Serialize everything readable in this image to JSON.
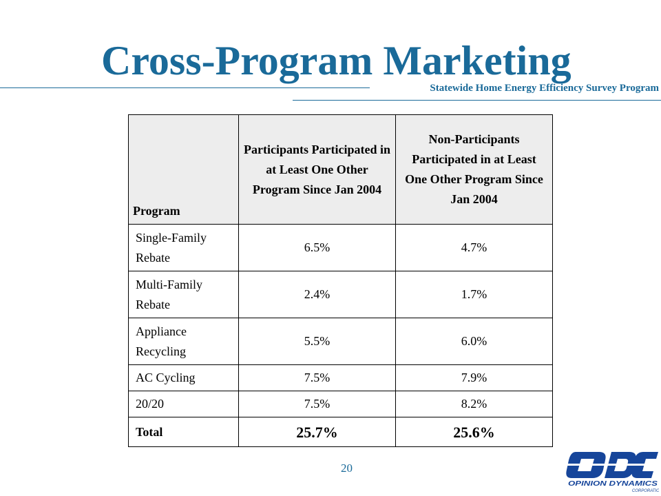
{
  "header": {
    "title": "Cross-Program Marketing",
    "subtitle": "Statewide Home Energy Efficiency Survey Program"
  },
  "table": {
    "columns": [
      "Program",
      "Participants Participated in at Least One Other Program Since Jan 2004",
      "Non-Participants Participated in at Least One Other Program Since Jan 2004"
    ],
    "rows": [
      {
        "program": "Single-Family Rebate",
        "participants": "6.5%",
        "non_participants": "4.7%"
      },
      {
        "program": "Multi-Family Rebate",
        "participants": "2.4%",
        "non_participants": "1.7%"
      },
      {
        "program": "Appliance Recycling",
        "participants": "5.5%",
        "non_participants": "6.0%"
      },
      {
        "program": "AC Cycling",
        "participants": "7.5%",
        "non_participants": "7.9%"
      },
      {
        "program": "20/20",
        "participants": "7.5%",
        "non_participants": "8.2%"
      },
      {
        "program": "Total",
        "participants": "25.7%",
        "non_participants": "25.6%"
      }
    ]
  },
  "footer": {
    "page_number": "20",
    "logo": {
      "mark": "ODC",
      "line1": "OPINION DYNAMICS",
      "line2": "CORPORATION",
      "color": "#16459a"
    }
  },
  "colors": {
    "accent": "#1a6a99",
    "header_fill": "#ededed",
    "logo_blue": "#16459a"
  }
}
